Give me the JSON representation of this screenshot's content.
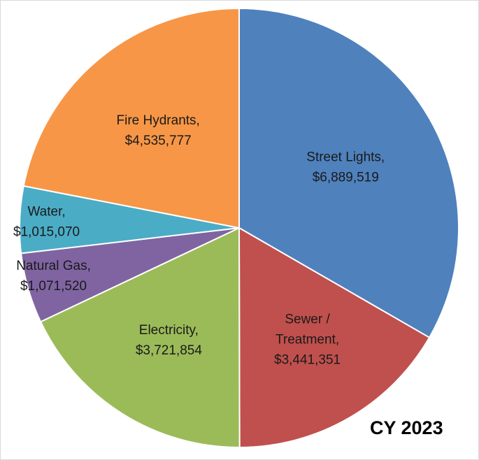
{
  "chart_data": {
    "type": "pie",
    "title": "",
    "corner_label": "CY 2023",
    "start_angle_deg": 0,
    "direction": "clockwise",
    "slices": [
      {
        "name": "Street Lights",
        "value": 6889519,
        "color": "#4f81bd",
        "label_lines": [
          "Street Lights,",
          "$6,889,519"
        ]
      },
      {
        "name": "Sewer / Treatment",
        "value": 3441351,
        "color": "#c0504d",
        "label_lines": [
          "Sewer /",
          "Treatment,",
          "$3,441,351"
        ]
      },
      {
        "name": "Electricity",
        "value": 3721854,
        "color": "#9bbb59",
        "label_lines": [
          "Electricity,",
          "$3,721,854"
        ]
      },
      {
        "name": "Natural Gas",
        "value": 1071520,
        "color": "#8064a2",
        "label_lines": [
          "Natural Gas,",
          "$1,071,520"
        ]
      },
      {
        "name": "Water",
        "value": 1015070,
        "color": "#4bacc6",
        "label_lines": [
          "Water,",
          "$1,015,070"
        ]
      },
      {
        "name": "Fire Hydrants",
        "value": 4535777,
        "color": "#f79646",
        "label_lines": [
          "Fire Hydrants,",
          "$4,535,777"
        ]
      }
    ]
  }
}
